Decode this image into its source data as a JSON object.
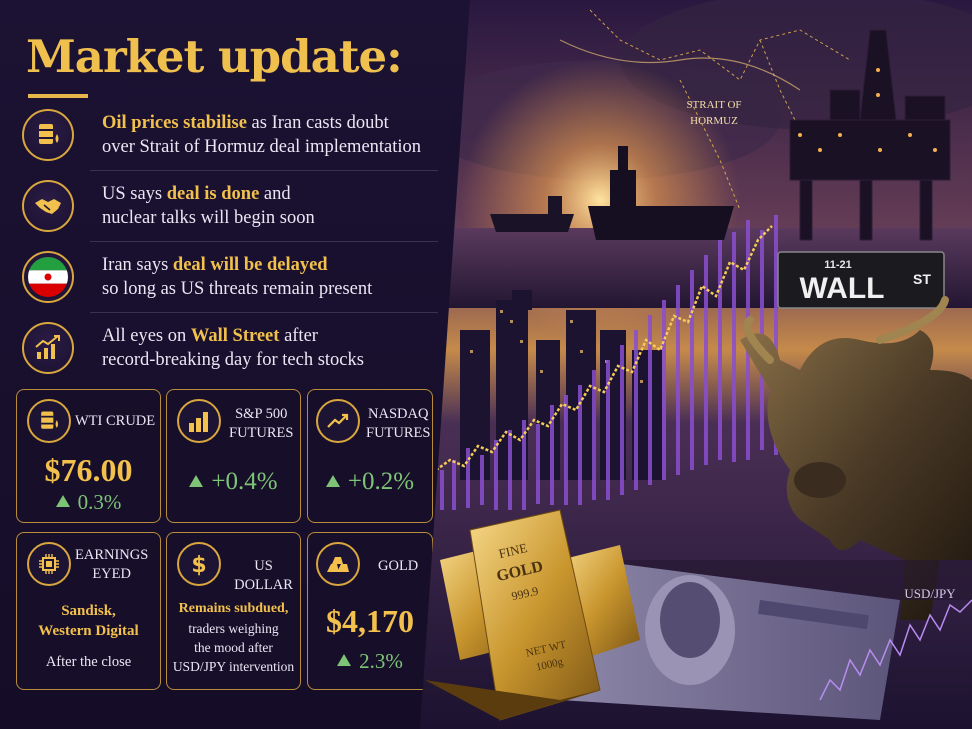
{
  "title": "Market update:",
  "news": [
    {
      "icon": "oil-barrel-icon",
      "highlight": "Oil prices stabilise",
      "line1_rest": " as Iran casts doubt",
      "line2": "over Strait of Hormuz deal implementation"
    },
    {
      "icon": "handshake-icon",
      "line1_pre": "US says ",
      "highlight": "deal is done",
      "line1_rest": " and",
      "line2": "nuclear talks will begin soon"
    },
    {
      "icon": "iran-flag-icon",
      "line1_pre": "Iran says ",
      "highlight": "deal will be delayed",
      "line2": "so long as US threats remain present"
    },
    {
      "icon": "chart-up-icon",
      "line1_pre": "All eyes on ",
      "highlight": "Wall Street",
      "line1_rest": " after",
      "line2": "record-breaking day for tech stocks"
    }
  ],
  "cards": {
    "wti": {
      "label": "WTI CRUDE",
      "value": "$76.00",
      "change": "0.3%"
    },
    "sp500": {
      "label_line1": "S&P 500",
      "label_line2": "FUTURES",
      "change": "+0.4%"
    },
    "nasdaq": {
      "label_line1": "NASDAQ",
      "label_line2": "FUTURES",
      "change": "+0.2%"
    },
    "earnings": {
      "label_line1": "EARNINGS",
      "label_line2": "EYED",
      "companies_line1": "Sandisk,",
      "companies_line2": "Western Digital",
      "note": "After the close"
    },
    "usd": {
      "label": "US DOLLAR",
      "headline": "Remains subdued,",
      "line1": "traders weighing",
      "line2": "the mood after",
      "line3": "USD/JPY intervention"
    },
    "gold": {
      "label": "GOLD",
      "value": "$4,170",
      "change": "2.3%"
    }
  },
  "scene": {
    "strait_line1": "STRAIT OF",
    "strait_line2": "HORMUZ",
    "sign_number": "11-21",
    "sign_main": "WALL",
    "sign_st": "ST",
    "bar_line1": "FINE",
    "bar_line2": "GOLD",
    "bar_line3": "999.9",
    "bar2_line1": "NET WT",
    "bar2_line2": "1000g",
    "usdjpy": "USD/JPY"
  },
  "colors": {
    "accent_gold": "#f2c04c",
    "positive_green": "#7ec476",
    "background": "#170f2c"
  }
}
